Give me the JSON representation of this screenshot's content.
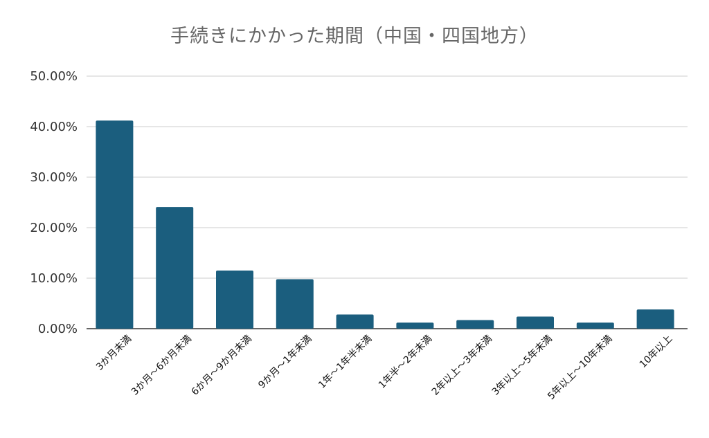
{
  "chart_data": {
    "type": "bar",
    "title": "手続きにかかった期間（中国・四国地方）",
    "xlabel": "",
    "ylabel": "",
    "ylim": [
      0,
      50
    ],
    "y_tick_labels": [
      "0.00%",
      "10.00%",
      "20.00%",
      "30.00%",
      "40.00%",
      "50.00%"
    ],
    "y_ticks": [
      0,
      10,
      20,
      30,
      40,
      50
    ],
    "grid": true,
    "categories": [
      "3か月未満",
      "3か月～6か月未満",
      "6か月～9か月未満",
      "9か月～1年未満",
      "1年～1年半未満",
      "1年半～2年未満",
      "2年以上～3年未満",
      "3年以上～5年未満",
      "5年以上～10年未満",
      "10年以上"
    ],
    "values": [
      41.2,
      24.1,
      11.5,
      9.8,
      2.8,
      1.2,
      1.7,
      2.4,
      1.2,
      3.8
    ],
    "bar_color": "#1b5e7e"
  }
}
